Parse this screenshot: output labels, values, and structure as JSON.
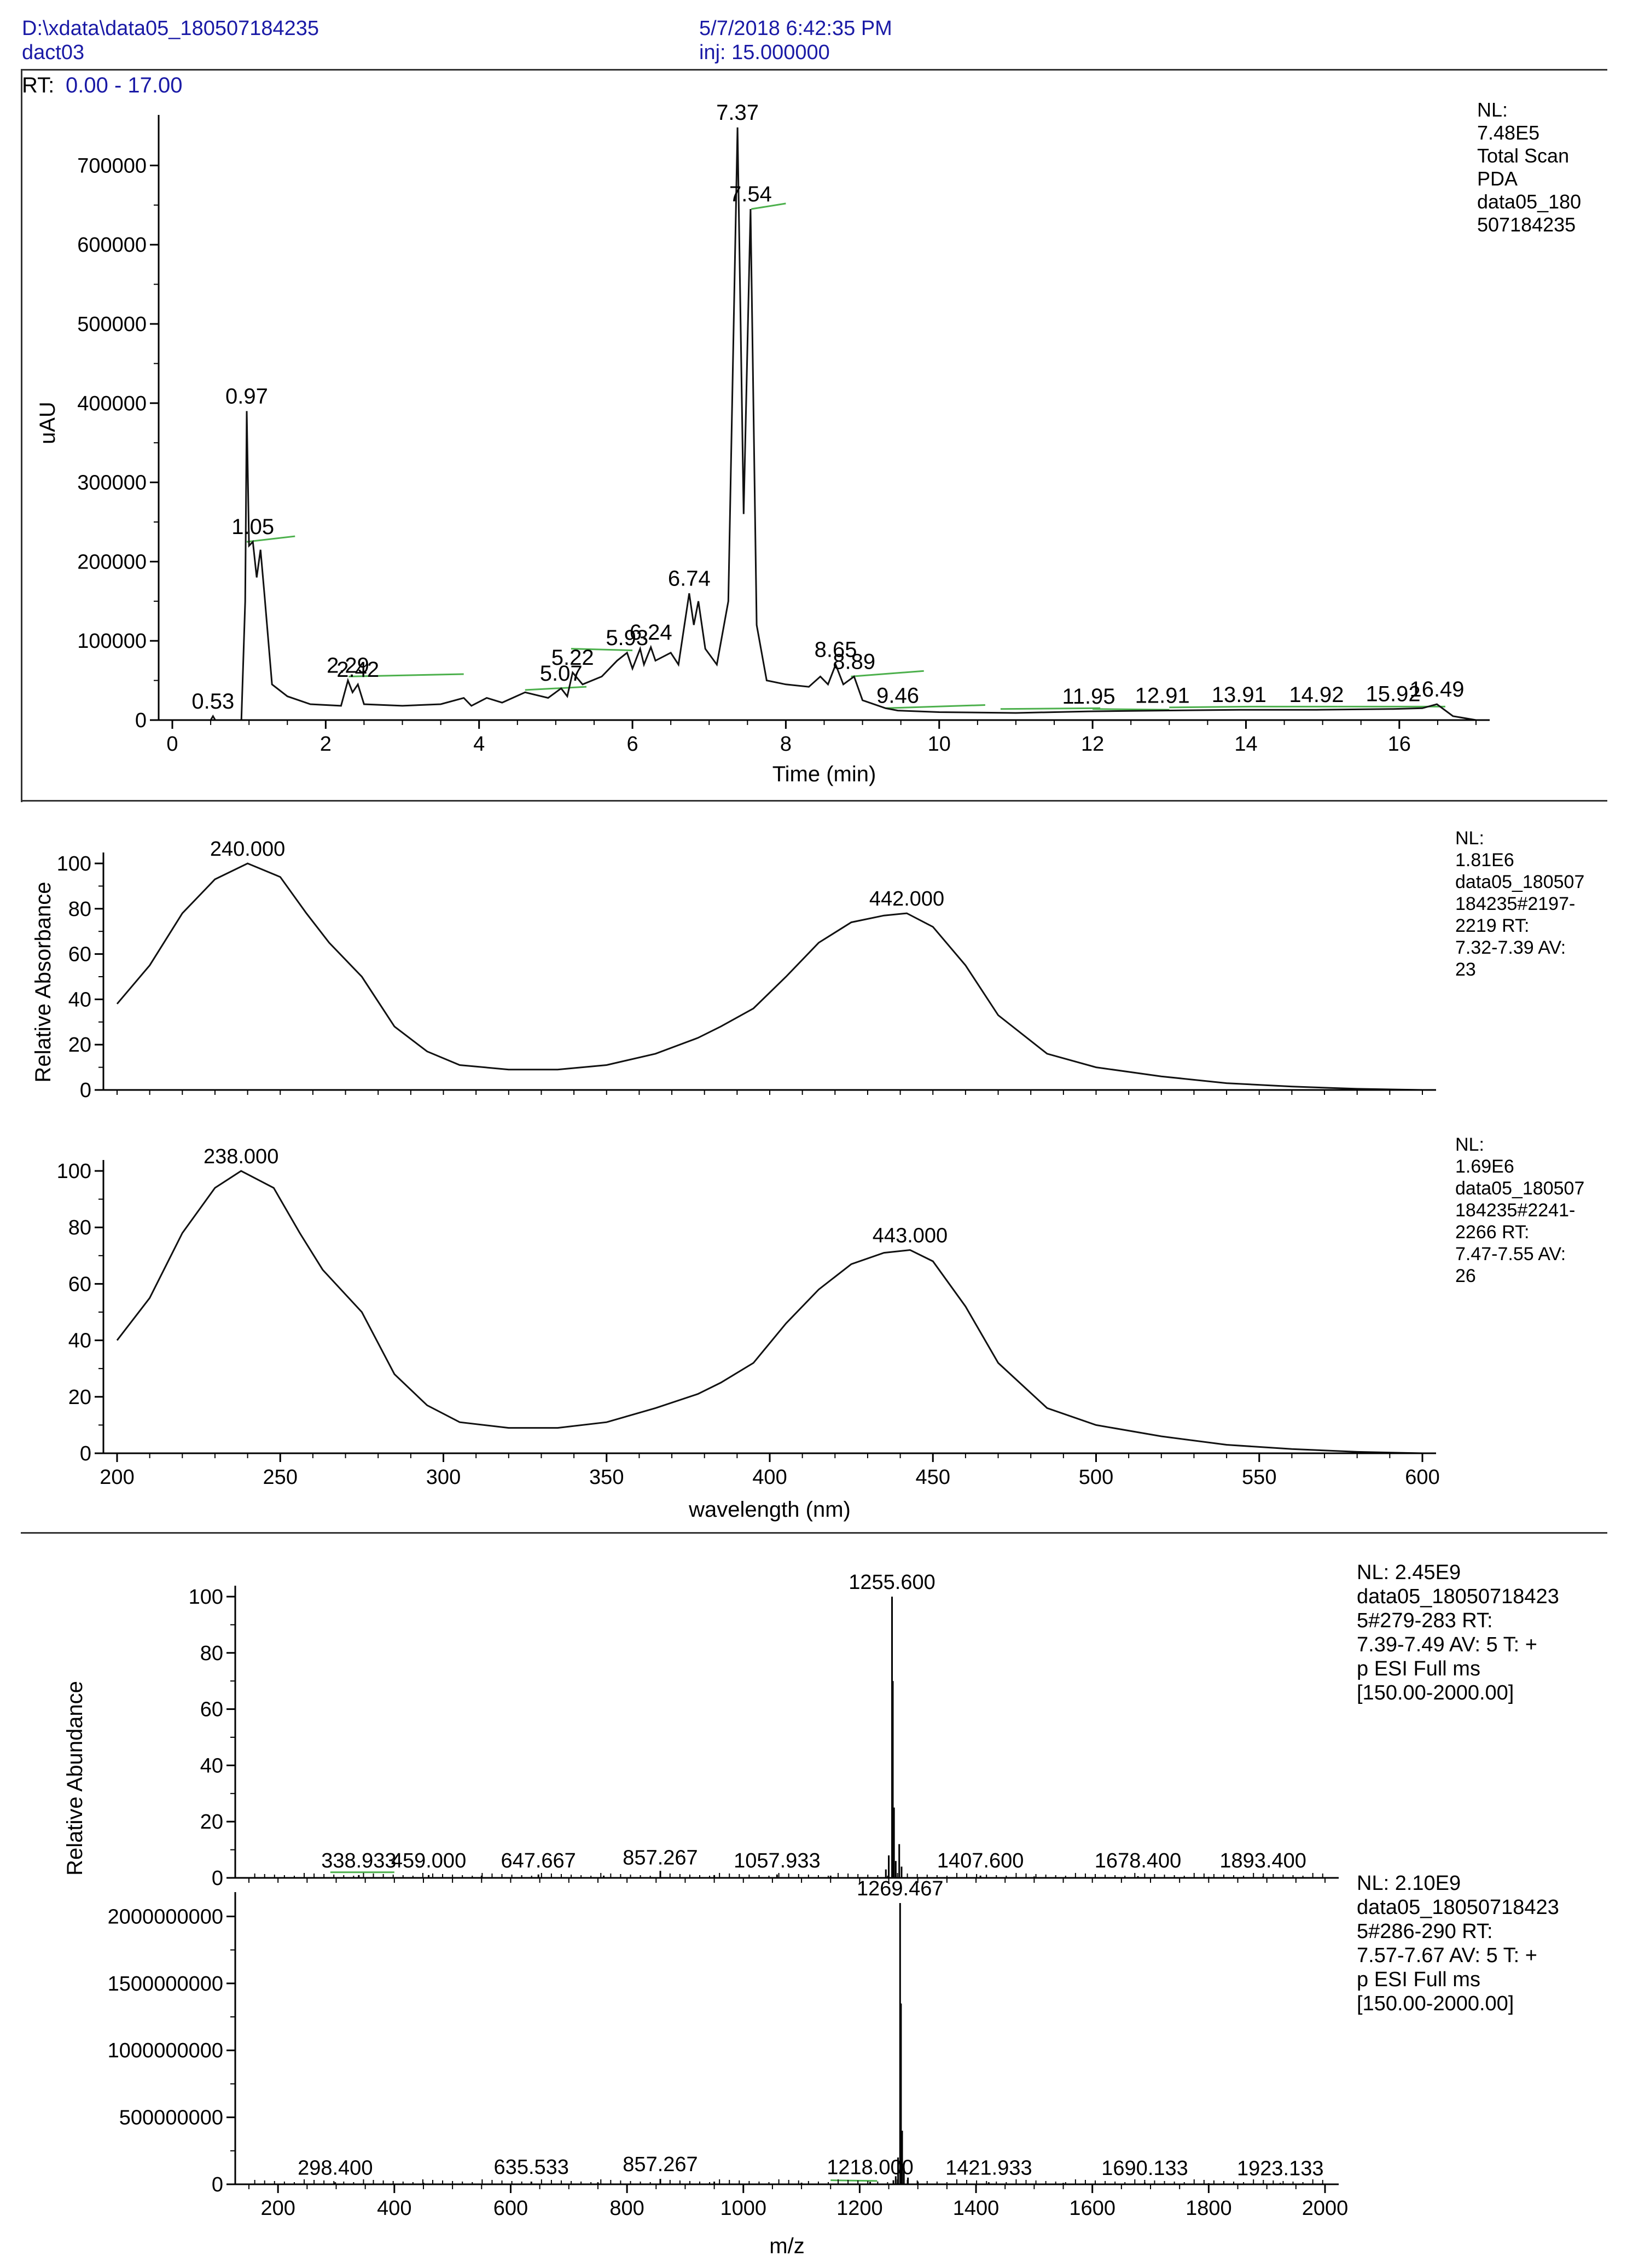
{
  "header": {
    "file_path": "D:\\xdata\\data05_180507184235",
    "sample": "dact03",
    "datetime": "5/7/2018 6:42:35 PM",
    "injection": "inj: 15.000000",
    "rt_range_label": "RT:",
    "rt_range_value": "0.00 - 17.00"
  },
  "chart_data": [
    {
      "type": "line",
      "id": "chromatogram",
      "title": "Total Scan PDA",
      "xlabel": "Time (min)",
      "ylabel": "uAU",
      "xlim": [
        0,
        17
      ],
      "ylim": [
        0,
        750000
      ],
      "xticks": [
        0,
        2,
        4,
        6,
        8,
        10,
        12,
        14,
        16
      ],
      "yticks": [
        0,
        100000,
        200000,
        300000,
        400000,
        500000,
        600000,
        700000
      ],
      "info": [
        "NL:",
        "7.48E5",
        "Total Scan",
        "PDA",
        "data05_180",
        "507184235"
      ],
      "points": [
        [
          0,
          0
        ],
        [
          0.5,
          0
        ],
        [
          0.53,
          5000
        ],
        [
          0.56,
          0
        ],
        [
          0.9,
          0
        ],
        [
          0.95,
          150000
        ],
        [
          0.97,
          390000
        ],
        [
          1.0,
          220000
        ],
        [
          1.05,
          225000
        ],
        [
          1.1,
          180000
        ],
        [
          1.15,
          215000
        ],
        [
          1.2,
          160000
        ],
        [
          1.3,
          45000
        ],
        [
          1.5,
          30000
        ],
        [
          1.8,
          20000
        ],
        [
          2.2,
          18000
        ],
        [
          2.29,
          50000
        ],
        [
          2.35,
          35000
        ],
        [
          2.42,
          45000
        ],
        [
          2.5,
          20000
        ],
        [
          3.0,
          18000
        ],
        [
          3.5,
          20000
        ],
        [
          3.8,
          28000
        ],
        [
          3.9,
          18000
        ],
        [
          4.1,
          28000
        ],
        [
          4.3,
          22000
        ],
        [
          4.6,
          35000
        ],
        [
          4.9,
          28000
        ],
        [
          5.07,
          40000
        ],
        [
          5.15,
          30000
        ],
        [
          5.22,
          60000
        ],
        [
          5.35,
          45000
        ],
        [
          5.6,
          55000
        ],
        [
          5.8,
          75000
        ],
        [
          5.93,
          85000
        ],
        [
          6.0,
          65000
        ],
        [
          6.1,
          90000
        ],
        [
          6.15,
          70000
        ],
        [
          6.24,
          92000
        ],
        [
          6.3,
          75000
        ],
        [
          6.5,
          85000
        ],
        [
          6.6,
          70000
        ],
        [
          6.74,
          160000
        ],
        [
          6.8,
          120000
        ],
        [
          6.86,
          150000
        ],
        [
          6.95,
          90000
        ],
        [
          7.1,
          70000
        ],
        [
          7.25,
          150000
        ],
        [
          7.37,
          748000
        ],
        [
          7.45,
          260000
        ],
        [
          7.54,
          645000
        ],
        [
          7.62,
          120000
        ],
        [
          7.75,
          50000
        ],
        [
          8.0,
          45000
        ],
        [
          8.3,
          42000
        ],
        [
          8.45,
          55000
        ],
        [
          8.55,
          45000
        ],
        [
          8.65,
          70000
        ],
        [
          8.75,
          45000
        ],
        [
          8.89,
          55000
        ],
        [
          9.0,
          25000
        ],
        [
          9.3,
          15000
        ],
        [
          9.46,
          12000
        ],
        [
          10.0,
          10000
        ],
        [
          11.0,
          9000
        ],
        [
          11.95,
          11000
        ],
        [
          12.91,
          12000
        ],
        [
          13.91,
          13000
        ],
        [
          14.92,
          13000
        ],
        [
          15.92,
          14000
        ],
        [
          16.3,
          15000
        ],
        [
          16.49,
          20000
        ],
        [
          16.7,
          5000
        ],
        [
          17.0,
          0
        ]
      ],
      "peak_labels": [
        {
          "x": 0.53,
          "y": 5000,
          "label": "0.53"
        },
        {
          "x": 0.97,
          "y": 390000,
          "label": "0.97"
        },
        {
          "x": 1.05,
          "y": 225000,
          "label": "1.05"
        },
        {
          "x": 2.29,
          "y": 50000,
          "label": "2.29"
        },
        {
          "x": 2.42,
          "y": 45000,
          "label": "2.42"
        },
        {
          "x": 5.07,
          "y": 40000,
          "label": "5.07"
        },
        {
          "x": 5.22,
          "y": 60000,
          "label": "5.22"
        },
        {
          "x": 5.93,
          "y": 85000,
          "label": "5.93"
        },
        {
          "x": 6.24,
          "y": 92000,
          "label": "6.24"
        },
        {
          "x": 6.74,
          "y": 160000,
          "label": "6.74"
        },
        {
          "x": 7.37,
          "y": 748000,
          "label": "7.37"
        },
        {
          "x": 7.54,
          "y": 645000,
          "label": "7.54"
        },
        {
          "x": 8.65,
          "y": 70000,
          "label": "8.65"
        },
        {
          "x": 8.89,
          "y": 55000,
          "label": "8.89"
        },
        {
          "x": 9.46,
          "y": 12000,
          "label": "9.46"
        },
        {
          "x": 11.95,
          "y": 11000,
          "label": "11.95"
        },
        {
          "x": 12.91,
          "y": 12000,
          "label": "12.91"
        },
        {
          "x": 13.91,
          "y": 13000,
          "label": "13.91"
        },
        {
          "x": 14.92,
          "y": 13000,
          "label": "14.92"
        },
        {
          "x": 15.92,
          "y": 14000,
          "label": "15.92"
        },
        {
          "x": 16.49,
          "y": 20000,
          "label": "16.49"
        }
      ],
      "baselines": [
        [
          0.97,
          225000,
          1.6,
          232000
        ],
        [
          2.3,
          55000,
          3.8,
          58000
        ],
        [
          4.6,
          38000,
          5.4,
          42000
        ],
        [
          5.2,
          90000,
          6.0,
          88000
        ],
        [
          7.55,
          645000,
          8.0,
          652000
        ],
        [
          8.85,
          55000,
          9.8,
          62000
        ],
        [
          9.3,
          15000,
          10.6,
          19000
        ],
        [
          10.8,
          14000,
          12.1,
          15000
        ],
        [
          12.0,
          14000,
          13.0,
          13000
        ],
        [
          13.0,
          16000,
          14.1,
          17000
        ],
        [
          14.1,
          17000,
          15.2,
          17000
        ],
        [
          15.2,
          17000,
          16.6,
          17000
        ]
      ]
    },
    {
      "type": "line",
      "id": "uv-spectrum-1",
      "xlabel": "",
      "ylabel": "Relative Absorbance",
      "xlim": [
        200,
        600
      ],
      "ylim": [
        0,
        100
      ],
      "xticks": [],
      "yticks": [
        0,
        20,
        40,
        60,
        80,
        100
      ],
      "info": [
        "NL:",
        "1.81E6",
        "data05_180507",
        "184235#2197-",
        "2219  RT:",
        "7.32-7.39  AV:",
        "23"
      ],
      "points": [
        [
          200,
          38
        ],
        [
          210,
          55
        ],
        [
          220,
          78
        ],
        [
          230,
          93
        ],
        [
          240,
          100
        ],
        [
          250,
          94
        ],
        [
          258,
          78
        ],
        [
          265,
          65
        ],
        [
          275,
          50
        ],
        [
          285,
          28
        ],
        [
          295,
          17
        ],
        [
          305,
          11
        ],
        [
          320,
          9
        ],
        [
          335,
          9
        ],
        [
          350,
          11
        ],
        [
          365,
          16
        ],
        [
          378,
          23
        ],
        [
          385,
          28
        ],
        [
          395,
          36
        ],
        [
          405,
          50
        ],
        [
          415,
          65
        ],
        [
          425,
          74
        ],
        [
          435,
          77
        ],
        [
          442,
          78
        ],
        [
          450,
          72
        ],
        [
          460,
          55
        ],
        [
          470,
          33
        ],
        [
          485,
          16
        ],
        [
          500,
          10
        ],
        [
          520,
          6
        ],
        [
          540,
          3
        ],
        [
          560,
          1.5
        ],
        [
          580,
          0.5
        ],
        [
          600,
          0
        ]
      ],
      "peak_labels": [
        {
          "x": 240,
          "y": 100,
          "label": "240.000"
        },
        {
          "x": 442,
          "y": 78,
          "label": "442.000"
        }
      ]
    },
    {
      "type": "line",
      "id": "uv-spectrum-2",
      "xlabel": "wavelength (nm)",
      "ylabel": "",
      "xlim": [
        200,
        600
      ],
      "ylim": [
        0,
        100
      ],
      "xticks": [
        200,
        250,
        300,
        350,
        400,
        450,
        500,
        550,
        600
      ],
      "yticks": [
        0,
        20,
        40,
        60,
        80,
        100
      ],
      "info": [
        "NL:",
        "1.69E6",
        "data05_180507",
        "184235#2241-",
        "2266  RT:",
        "7.47-7.55  AV:",
        "26"
      ],
      "points": [
        [
          200,
          40
        ],
        [
          210,
          55
        ],
        [
          220,
          78
        ],
        [
          230,
          94
        ],
        [
          238,
          100
        ],
        [
          248,
          94
        ],
        [
          256,
          78
        ],
        [
          263,
          65
        ],
        [
          275,
          50
        ],
        [
          285,
          28
        ],
        [
          295,
          17
        ],
        [
          305,
          11
        ],
        [
          320,
          9
        ],
        [
          335,
          9
        ],
        [
          350,
          11
        ],
        [
          365,
          16
        ],
        [
          378,
          21
        ],
        [
          385,
          25
        ],
        [
          395,
          32
        ],
        [
          405,
          46
        ],
        [
          415,
          58
        ],
        [
          425,
          67
        ],
        [
          435,
          71
        ],
        [
          443,
          72
        ],
        [
          450,
          68
        ],
        [
          460,
          52
        ],
        [
          470,
          32
        ],
        [
          485,
          16
        ],
        [
          500,
          10
        ],
        [
          520,
          6
        ],
        [
          540,
          3
        ],
        [
          560,
          1.5
        ],
        [
          580,
          0.5
        ],
        [
          600,
          0
        ]
      ],
      "peak_labels": [
        {
          "x": 238,
          "y": 100,
          "label": "238.000"
        },
        {
          "x": 443,
          "y": 72,
          "label": "443.000"
        }
      ]
    },
    {
      "type": "bar",
      "id": "mass-spectrum-1",
      "xlabel": "",
      "ylabel": "Relative Abundance",
      "xlim": [
        150,
        2000
      ],
      "ylim": [
        0,
        100
      ],
      "xticks": [],
      "yticks": [
        0,
        20,
        40,
        60,
        80,
        100
      ],
      "info": [
        "NL: 2.45E9",
        "data05_18050718423",
        "5#279-283  RT:",
        "7.39-7.49  AV: 5 T: +",
        "p ESI Full ms",
        "[150.00-2000.00]"
      ],
      "peaks": [
        [
          338.9,
          1
        ],
        [
          459.0,
          1
        ],
        [
          550,
          0.8
        ],
        [
          647.7,
          1.2
        ],
        [
          760,
          0.8
        ],
        [
          857.3,
          2.5
        ],
        [
          950,
          1
        ],
        [
          1057.9,
          1.2
        ],
        [
          1150,
          0.8
        ],
        [
          1245,
          3
        ],
        [
          1250,
          8
        ],
        [
          1255.6,
          100
        ],
        [
          1257,
          70
        ],
        [
          1259,
          25
        ],
        [
          1262,
          6
        ],
        [
          1268,
          12
        ],
        [
          1272,
          4
        ],
        [
          1407.6,
          0.8
        ],
        [
          1500,
          0.5
        ],
        [
          1678.4,
          0.6
        ],
        [
          1800,
          0.4
        ],
        [
          1893.4,
          0.5
        ]
      ],
      "peak_labels": [
        {
          "x": 338.933,
          "y": 1,
          "label": "338.933"
        },
        {
          "x": 459.0,
          "y": 1,
          "label": "459.000"
        },
        {
          "x": 647.667,
          "y": 1,
          "label": "647.667"
        },
        {
          "x": 857.267,
          "y": 2,
          "label": "857.267"
        },
        {
          "x": 1057.933,
          "y": 1,
          "label": "1057.933"
        },
        {
          "x": 1255.6,
          "y": 100,
          "label": "1255.600"
        },
        {
          "x": 1407.6,
          "y": 1,
          "label": "1407.600"
        },
        {
          "x": 1678.4,
          "y": 1,
          "label": "1678.400"
        },
        {
          "x": 1893.4,
          "y": 1,
          "label": "1893.400"
        }
      ],
      "baselines": [
        [
          290,
          2,
          400,
          2
        ]
      ]
    },
    {
      "type": "bar",
      "id": "mass-spectrum-2",
      "xlabel": "m/z",
      "ylabel": "",
      "xlim": [
        150,
        2000
      ],
      "ylim": [
        0,
        2100000000
      ],
      "xticks": [
        200,
        400,
        600,
        800,
        1000,
        1200,
        1400,
        1600,
        1800,
        2000
      ],
      "yticks": [
        0,
        500000000,
        1000000000,
        1500000000,
        2000000000
      ],
      "info": [
        "NL: 2.10E9",
        "data05_18050718423",
        "5#286-290  RT:",
        "7.57-7.67  AV: 5 T: +",
        "p ESI Full ms",
        "[150.00-2000.00]"
      ],
      "peaks": [
        [
          298.4,
          15000000
        ],
        [
          450,
          12000000
        ],
        [
          635.5,
          20000000
        ],
        [
          750,
          15000000
        ],
        [
          857.3,
          40000000
        ],
        [
          950,
          20000000
        ],
        [
          1100,
          12000000
        ],
        [
          1218.0,
          18000000
        ],
        [
          1258,
          30000000
        ],
        [
          1262,
          60000000
        ],
        [
          1266,
          200000000
        ],
        [
          1269.5,
          2100000000
        ],
        [
          1271,
          1350000000
        ],
        [
          1273,
          400000000
        ],
        [
          1276,
          120000000
        ],
        [
          1283,
          50000000
        ],
        [
          1300,
          20000000
        ],
        [
          1421.9,
          15000000
        ],
        [
          1550,
          10000000
        ],
        [
          1690.1,
          12000000
        ],
        [
          1800,
          8000000
        ],
        [
          1923.1,
          10000000
        ]
      ],
      "peak_labels": [
        {
          "x": 298.4,
          "y": 15000000,
          "label": "298.400"
        },
        {
          "x": 635.533,
          "y": 20000000,
          "label": "635.533"
        },
        {
          "x": 857.267,
          "y": 40000000,
          "label": "857.267"
        },
        {
          "x": 1218.0,
          "y": 18000000,
          "label": "1218.000"
        },
        {
          "x": 1269.467,
          "y": 2100000000,
          "label": "1269.467"
        },
        {
          "x": 1421.933,
          "y": 15000000,
          "label": "1421.933"
        },
        {
          "x": 1690.133,
          "y": 12000000,
          "label": "1690.133"
        },
        {
          "x": 1923.133,
          "y": 10000000,
          "label": "1923.133"
        }
      ],
      "baselines": [
        [
          1150,
          30000000,
          1230,
          25000000
        ]
      ]
    }
  ]
}
